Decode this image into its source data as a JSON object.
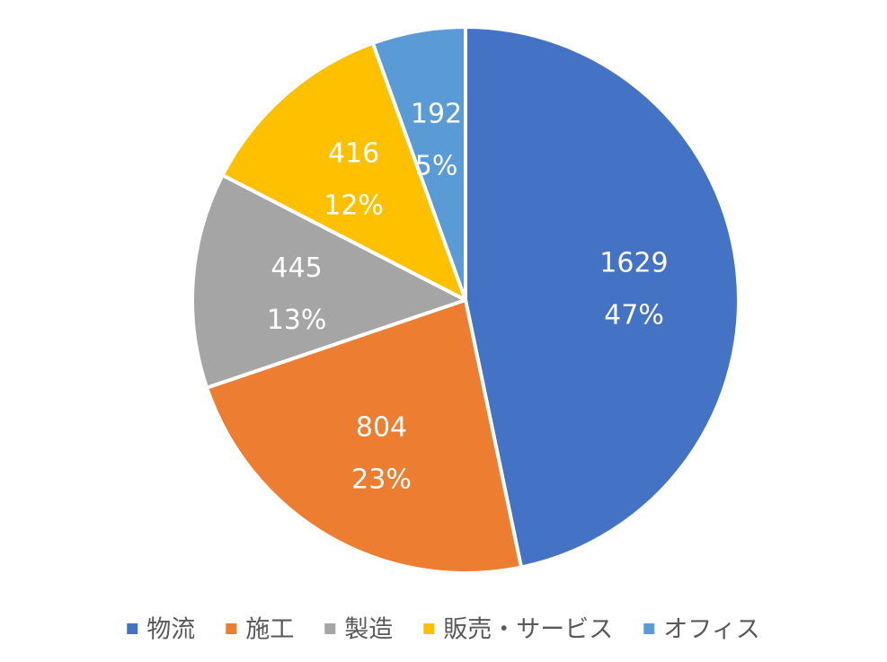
{
  "chart_data": {
    "type": "pie",
    "title": "",
    "legend_position": "bottom",
    "slices": [
      {
        "name": "物流",
        "value": 1629,
        "percent_label": "47%",
        "color": "#4472C4"
      },
      {
        "name": "施工",
        "value": 804,
        "percent_label": "23%",
        "color": "#ED7D31"
      },
      {
        "name": "製造",
        "value": 445,
        "percent_label": "13%",
        "color": "#A5A5A5"
      },
      {
        "name": "販売・サービス",
        "value": 416,
        "percent_label": "12%",
        "color": "#FFC000"
      },
      {
        "name": "オフィス",
        "value": 192,
        "percent_label": "5%",
        "color": "#5B9BD5"
      }
    ]
  }
}
